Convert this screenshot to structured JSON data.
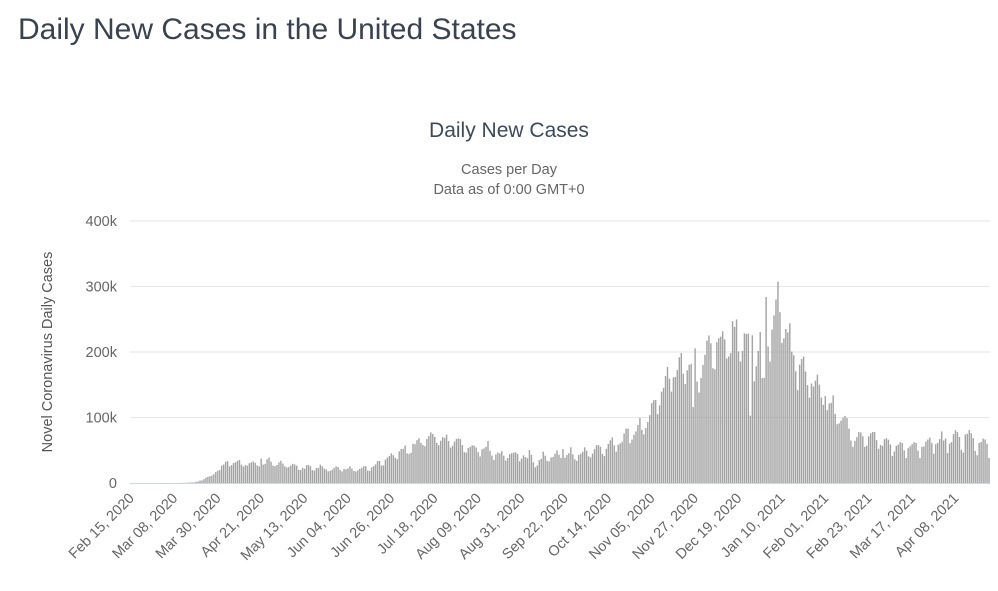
{
  "page": {
    "heading": "Daily New Cases in the United States"
  },
  "colors": {
    "heading_text": "#3a4250",
    "chart_title_text": "#3b4a5a",
    "subtitle_text": "#666666",
    "tick_label_text": "#666666",
    "y_axis_title_text": "#555555",
    "gridline": "#e6e6e6",
    "axis_line": "#ccd6eb",
    "bar": "#a3a3a3",
    "background": "#ffffff"
  },
  "chart_data": {
    "type": "bar",
    "title": "Daily New Cases",
    "subtitle_lines": [
      "Cases per Day",
      "Data as of 0:00 GMT+0"
    ],
    "xlabel": "",
    "ylabel": "Novel Coronavirus Daily Cases",
    "ylim": [
      0,
      400000
    ],
    "grid": true,
    "legend_position": "none",
    "bar_color": "#a3a3a3",
    "grid_color": "#e6e6e6",
    "axis_line_color": "#ccd6eb",
    "tick_label_color": "#666666",
    "ytick_values": [
      0,
      100000,
      200000,
      300000,
      400000
    ],
    "ytick_labels": [
      "0",
      "100k",
      "200k",
      "300k",
      "400k"
    ],
    "x_start_label": "Feb 15, 2020",
    "xtick_every_days": 22,
    "xtick_labels": [
      "Feb 15, 2020",
      "Mar 08, 2020",
      "Mar 30, 2020",
      "Apr 21, 2020",
      "May 13, 2020",
      "Jun 04, 2020",
      "Jun 26, 2020",
      "Jul 18, 2020",
      "Aug 09, 2020",
      "Aug 31, 2020",
      "Sep 22, 2020",
      "Oct 14, 2020",
      "Nov 05, 2020",
      "Nov 27, 2020",
      "Dec 19, 2020",
      "Jan 10, 2021",
      "Feb 01, 2021",
      "Feb 23, 2021",
      "Mar 17, 2021",
      "Apr 08, 2021"
    ],
    "values": [
      0,
      0,
      0,
      0,
      0,
      0,
      1,
      1,
      0,
      1,
      0,
      6,
      1,
      5,
      8,
      6,
      23,
      20,
      31,
      68,
      45,
      140,
      120,
      95,
      65,
      160,
      290,
      278,
      351,
      511,
      777,
      823,
      887,
      1766,
      2270,
      3741,
      4007,
      5863,
      8149,
      9400,
      10370,
      11166,
      13451,
      16916,
      18691,
      19682,
      26641,
      28178,
      32425,
      33264,
      25316,
      27326,
      30561,
      31709,
      33752,
      35098,
      28065,
      25300,
      27139,
      26385,
      30148,
      31451,
      32922,
      30833,
      26889,
      25458,
      37289,
      28123,
      29256,
      36188,
      38958,
      32612,
      26509,
      25858,
      27327,
      31451,
      34037,
      29744,
      25524,
      23792,
      24481,
      26660,
      29266,
      28323,
      26580,
      20329,
      19731,
      23290,
      21712,
      27143,
      27687,
      25508,
      19781,
      18873,
      22977,
      23208,
      28089,
      25551,
      21967,
      20795,
      17851,
      18759,
      20390,
      23240,
      25337,
      24266,
      20042,
      17543,
      21290,
      20801,
      22303,
      25247,
      22041,
      18366,
      17598,
      19509,
      21463,
      23277,
      25587,
      25540,
      19084,
      18577,
      23829,
      25785,
      28453,
      33388,
      33539,
      26643,
      27059,
      35690,
      38672,
      41381,
      45255,
      42486,
      38486,
      36386,
      48235,
      52017,
      52227,
      57236,
      45345,
      44361,
      46329,
      60021,
      59235,
      65334,
      68336,
      61448,
      58078,
      56191,
      67312,
      71670,
      77255,
      74710,
      70474,
      61241,
      57677,
      64545,
      70106,
      68989,
      73906,
      64094,
      54044,
      56745,
      63238,
      67404,
      68032,
      67023,
      58082,
      47173,
      46321,
      53558,
      55148,
      57590,
      57120,
      54234,
      47098,
      40522,
      51514,
      52799,
      55356,
      64201,
      49421,
      41893,
      35112,
      43587,
      46500,
      45341,
      48693,
      41674,
      34341,
      38263,
      43957,
      45405,
      46393,
      46890,
      44212,
      33229,
      37331,
      42382,
      39603,
      37857,
      50217,
      42981,
      31584,
      23924,
      26850,
      34869,
      36922,
      47931,
      41736,
      33871,
      32919,
      38954,
      39874,
      44654,
      49705,
      43188,
      38095,
      51825,
      38687,
      42679,
      45594,
      54617,
      43576,
      36280,
      33871,
      42724,
      44696,
      47659,
      54478,
      49327,
      40694,
      39161,
      44896,
      51617,
      57532,
      57938,
      55239,
      44398,
      41069,
      52269,
      59494,
      65256,
      69573,
      57441,
      47827,
      58407,
      60399,
      62848,
      75574,
      82969,
      83070,
      60807,
      66215,
      73664,
      78676,
      88521,
      99321,
      81227,
      74272,
      83929,
      93186,
      103657,
      121888,
      126480,
      126742,
      105031,
      118708,
      139412,
      145189,
      163405,
      177224,
      159333,
      139442,
      161184,
      162002,
      172391,
      191913,
      198470,
      166813,
      150966,
      172139,
      180576,
      181935,
      115962,
      205557,
      154893,
      138142,
      160252,
      180225,
      195695,
      217327,
      225201,
      213266,
      175243,
      173462,
      215087,
      220993,
      223570,
      231486,
      219229,
      190049,
      193196,
      198343,
      246999,
      238390,
      249709,
      200902,
      185359,
      201674,
      228410,
      227434,
      228125,
      102853,
      225447,
      155294,
      178162,
      201602,
      230357,
      160007,
      160485,
      284079,
      208437,
      185188,
      234153,
      255736,
      280026,
      307581,
      260689,
      213885,
      220921,
      235087,
      229764,
      243843,
      200658,
      195061,
      170632,
      141723,
      180640,
      189222,
      193096,
      170177,
      149244,
      130192,
      151782,
      147272,
      156176,
      165405,
      150091,
      130457,
      119292,
      132797,
      111228,
      121372,
      122473,
      133696,
      105584,
      89727,
      91047,
      95194,
      99590,
      102417,
      99036,
      83099,
      64938,
      55077,
      64376,
      69893,
      77737,
      77200,
      71295,
      55195,
      57029,
      71417,
      75822,
      77879,
      77671,
      65424,
      52243,
      58085,
      56684,
      66836,
      68454,
      66121,
      58832,
      41265,
      48097,
      56797,
      58529,
      62271,
      60999,
      49876,
      38256,
      53003,
      56087,
      59271,
      62147,
      61055,
      49321,
      38187,
      54974,
      55851,
      63249,
      66395,
      69322,
      61172,
      44752,
      59269,
      61240,
      67087,
      78740,
      64895,
      67792,
      45805,
      60237,
      62500,
      74740,
      80566,
      77677,
      70193,
      50646,
      46428,
      74070,
      75035,
      80786,
      76176,
      68505,
      48894,
      42425,
      61193,
      62530,
      67789,
      66389,
      59853,
      38255
    ]
  }
}
